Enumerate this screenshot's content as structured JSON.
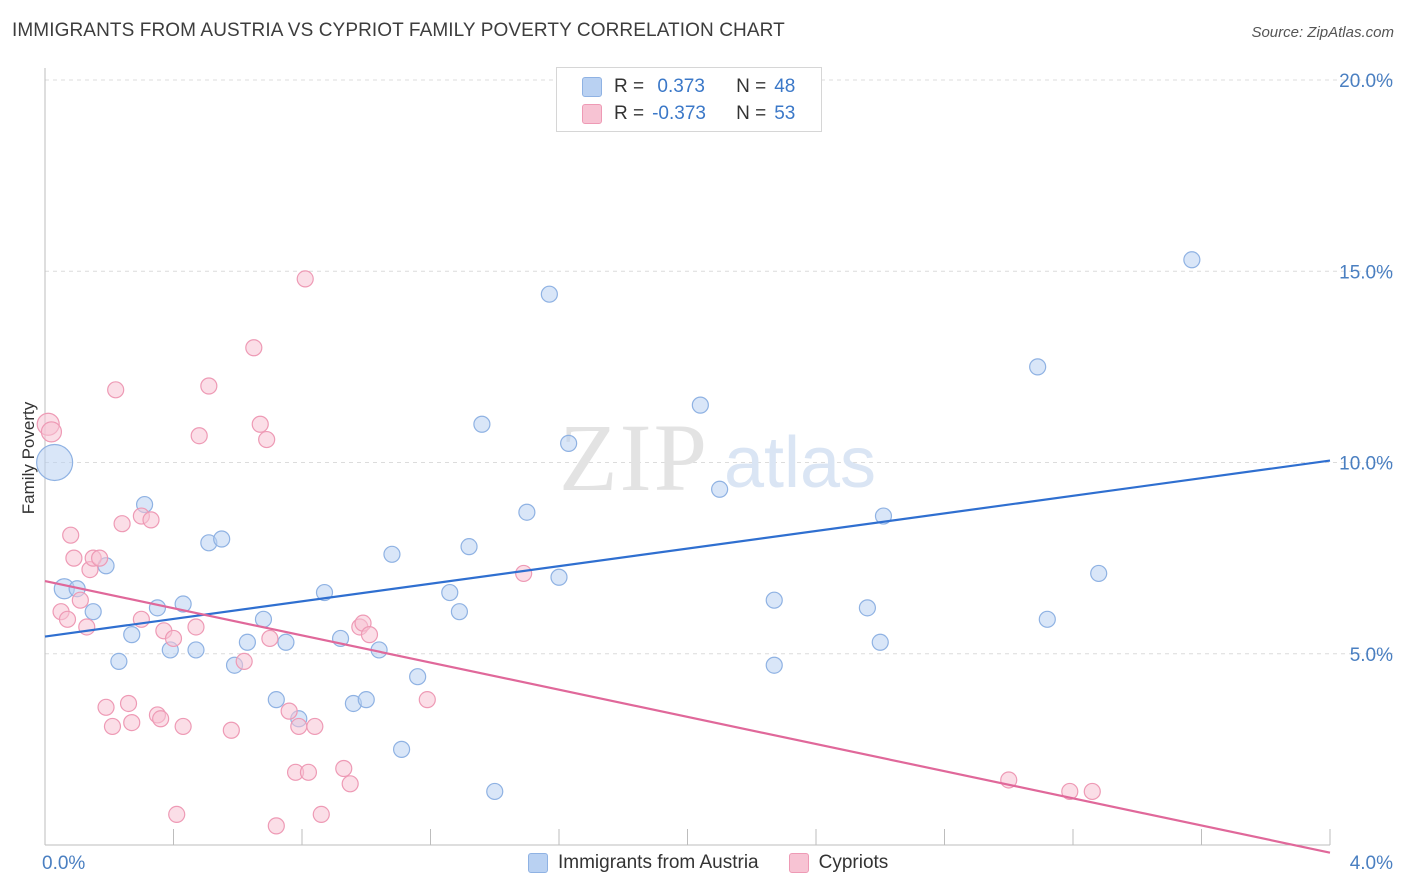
{
  "title": "IMMIGRANTS FROM AUSTRIA VS CYPRIOT FAMILY POVERTY CORRELATION CHART",
  "source": "Source: ZipAtlas.com",
  "watermark": {
    "zip": "ZIP",
    "atlas": "atlas"
  },
  "legend": {
    "rows": [
      {
        "r_label": "R =",
        "r_value": " 0.373",
        "n_label": "N =",
        "n_value": "48"
      },
      {
        "r_label": "R =",
        "r_value": "-0.373",
        "n_label": "N =",
        "n_value": "53"
      }
    ]
  },
  "colors": {
    "blue_fill": "#b9d1f2",
    "blue_stroke": "#8fb2e3",
    "blue_line": "#2f6fd0",
    "pink_fill": "#f7c3d3",
    "pink_stroke": "#ee9ab5",
    "pink_line": "#e0689a",
    "tick": "#4a7fc1"
  },
  "chart_data": {
    "type": "scatter",
    "title": "IMMIGRANTS FROM AUSTRIA VS CYPRIOT FAMILY POVERTY CORRELATION CHART",
    "xlabel": "",
    "ylabel": "Family Poverty",
    "xlim": [
      0.0,
      4.0
    ],
    "ylim": [
      0.0,
      20.0
    ],
    "x_tick_labels": [
      "0.0%",
      "4.0%"
    ],
    "y_ticks": [
      5,
      10,
      15,
      20
    ],
    "y_tick_labels": [
      "5.0%",
      "10.0%",
      "15.0%",
      "20.0%"
    ],
    "series": [
      {
        "name": "Immigrants from Austria",
        "color": "blue",
        "trend": [
          [
            0.0,
            5.45
          ],
          [
            4.0,
            10.05
          ]
        ],
        "points": [
          [
            0.03,
            10.0,
            18
          ],
          [
            0.06,
            6.7,
            10
          ],
          [
            0.1,
            6.7,
            8
          ],
          [
            0.15,
            6.1,
            8
          ],
          [
            0.19,
            7.3,
            8
          ],
          [
            0.23,
            4.8,
            8
          ],
          [
            0.27,
            5.5,
            8
          ],
          [
            0.31,
            8.9,
            8
          ],
          [
            0.35,
            6.2,
            8
          ],
          [
            0.39,
            5.1,
            8
          ],
          [
            0.43,
            6.3,
            8
          ],
          [
            0.47,
            5.1,
            8
          ],
          [
            0.51,
            7.9,
            8
          ],
          [
            0.55,
            8.0,
            8
          ],
          [
            0.59,
            4.7,
            8
          ],
          [
            0.63,
            5.3,
            8
          ],
          [
            0.68,
            5.9,
            8
          ],
          [
            0.72,
            3.8,
            8
          ],
          [
            0.75,
            5.3,
            8
          ],
          [
            0.79,
            3.3,
            8
          ],
          [
            0.87,
            6.6,
            8
          ],
          [
            0.92,
            5.4,
            8
          ],
          [
            0.96,
            3.7,
            8
          ],
          [
            1.0,
            3.8,
            8
          ],
          [
            1.04,
            5.1,
            8
          ],
          [
            1.08,
            7.6,
            8
          ],
          [
            1.11,
            2.5,
            8
          ],
          [
            1.16,
            4.4,
            8
          ],
          [
            1.26,
            6.6,
            8
          ],
          [
            1.29,
            6.1,
            8
          ],
          [
            1.32,
            7.8,
            8
          ],
          [
            1.36,
            11.0,
            8
          ],
          [
            1.4,
            1.4,
            8
          ],
          [
            1.5,
            8.7,
            8
          ],
          [
            1.57,
            14.4,
            8
          ],
          [
            1.6,
            7.0,
            8
          ],
          [
            1.63,
            10.5,
            8
          ],
          [
            2.04,
            11.5,
            8
          ],
          [
            2.1,
            9.3,
            8
          ],
          [
            2.27,
            6.4,
            8
          ],
          [
            2.27,
            4.7,
            8
          ],
          [
            2.56,
            6.2,
            8
          ],
          [
            2.6,
            5.3,
            8
          ],
          [
            2.61,
            8.6,
            8
          ],
          [
            3.12,
            5.9,
            8
          ],
          [
            3.09,
            12.5,
            8
          ],
          [
            3.28,
            7.1,
            8
          ],
          [
            3.57,
            15.3,
            8
          ]
        ]
      },
      {
        "name": "Cypriots",
        "color": "pink",
        "trend": [
          [
            0.0,
            6.9
          ],
          [
            4.0,
            -0.2
          ]
        ],
        "points": [
          [
            0.01,
            11.0,
            11
          ],
          [
            0.02,
            10.8,
            10
          ],
          [
            0.05,
            6.1,
            8
          ],
          [
            0.07,
            5.9,
            8
          ],
          [
            0.08,
            8.1,
            8
          ],
          [
            0.09,
            7.5,
            8
          ],
          [
            0.11,
            6.4,
            8
          ],
          [
            0.13,
            5.7,
            8
          ],
          [
            0.14,
            7.2,
            8
          ],
          [
            0.15,
            7.5,
            8
          ],
          [
            0.17,
            7.5,
            8
          ],
          [
            0.19,
            3.6,
            8
          ],
          [
            0.21,
            3.1,
            8
          ],
          [
            0.22,
            11.9,
            8
          ],
          [
            0.24,
            8.4,
            8
          ],
          [
            0.26,
            3.7,
            8
          ],
          [
            0.27,
            3.2,
            8
          ],
          [
            0.3,
            8.6,
            8
          ],
          [
            0.3,
            5.9,
            8
          ],
          [
            0.33,
            8.5,
            8
          ],
          [
            0.35,
            3.4,
            8
          ],
          [
            0.36,
            3.3,
            8
          ],
          [
            0.37,
            5.6,
            8
          ],
          [
            0.4,
            5.4,
            8
          ],
          [
            0.41,
            0.8,
            8
          ],
          [
            0.43,
            3.1,
            8
          ],
          [
            0.47,
            5.7,
            8
          ],
          [
            0.48,
            10.7,
            8
          ],
          [
            0.51,
            12.0,
            8
          ],
          [
            0.58,
            3.0,
            8
          ],
          [
            0.62,
            4.8,
            8
          ],
          [
            0.65,
            13.0,
            8
          ],
          [
            0.67,
            11.0,
            8
          ],
          [
            0.69,
            10.6,
            8
          ],
          [
            0.7,
            5.4,
            8
          ],
          [
            0.72,
            0.5,
            8
          ],
          [
            0.76,
            3.5,
            8
          ],
          [
            0.78,
            1.9,
            8
          ],
          [
            0.79,
            3.1,
            8
          ],
          [
            0.81,
            14.8,
            8
          ],
          [
            0.82,
            1.9,
            8
          ],
          [
            0.84,
            3.1,
            8
          ],
          [
            0.86,
            0.8,
            8
          ],
          [
            0.93,
            2.0,
            8
          ],
          [
            0.95,
            1.6,
            8
          ],
          [
            0.98,
            5.7,
            8
          ],
          [
            0.99,
            5.8,
            8
          ],
          [
            1.01,
            5.5,
            8
          ],
          [
            1.19,
            3.8,
            8
          ],
          [
            1.49,
            7.1,
            8
          ],
          [
            3.0,
            1.7,
            8
          ],
          [
            3.19,
            1.4,
            8
          ],
          [
            3.26,
            1.4,
            8
          ]
        ]
      }
    ]
  },
  "bottom_legend": [
    {
      "label": "Immigrants from Austria",
      "color": "blue"
    },
    {
      "label": "Cypriots",
      "color": "pink"
    }
  ]
}
